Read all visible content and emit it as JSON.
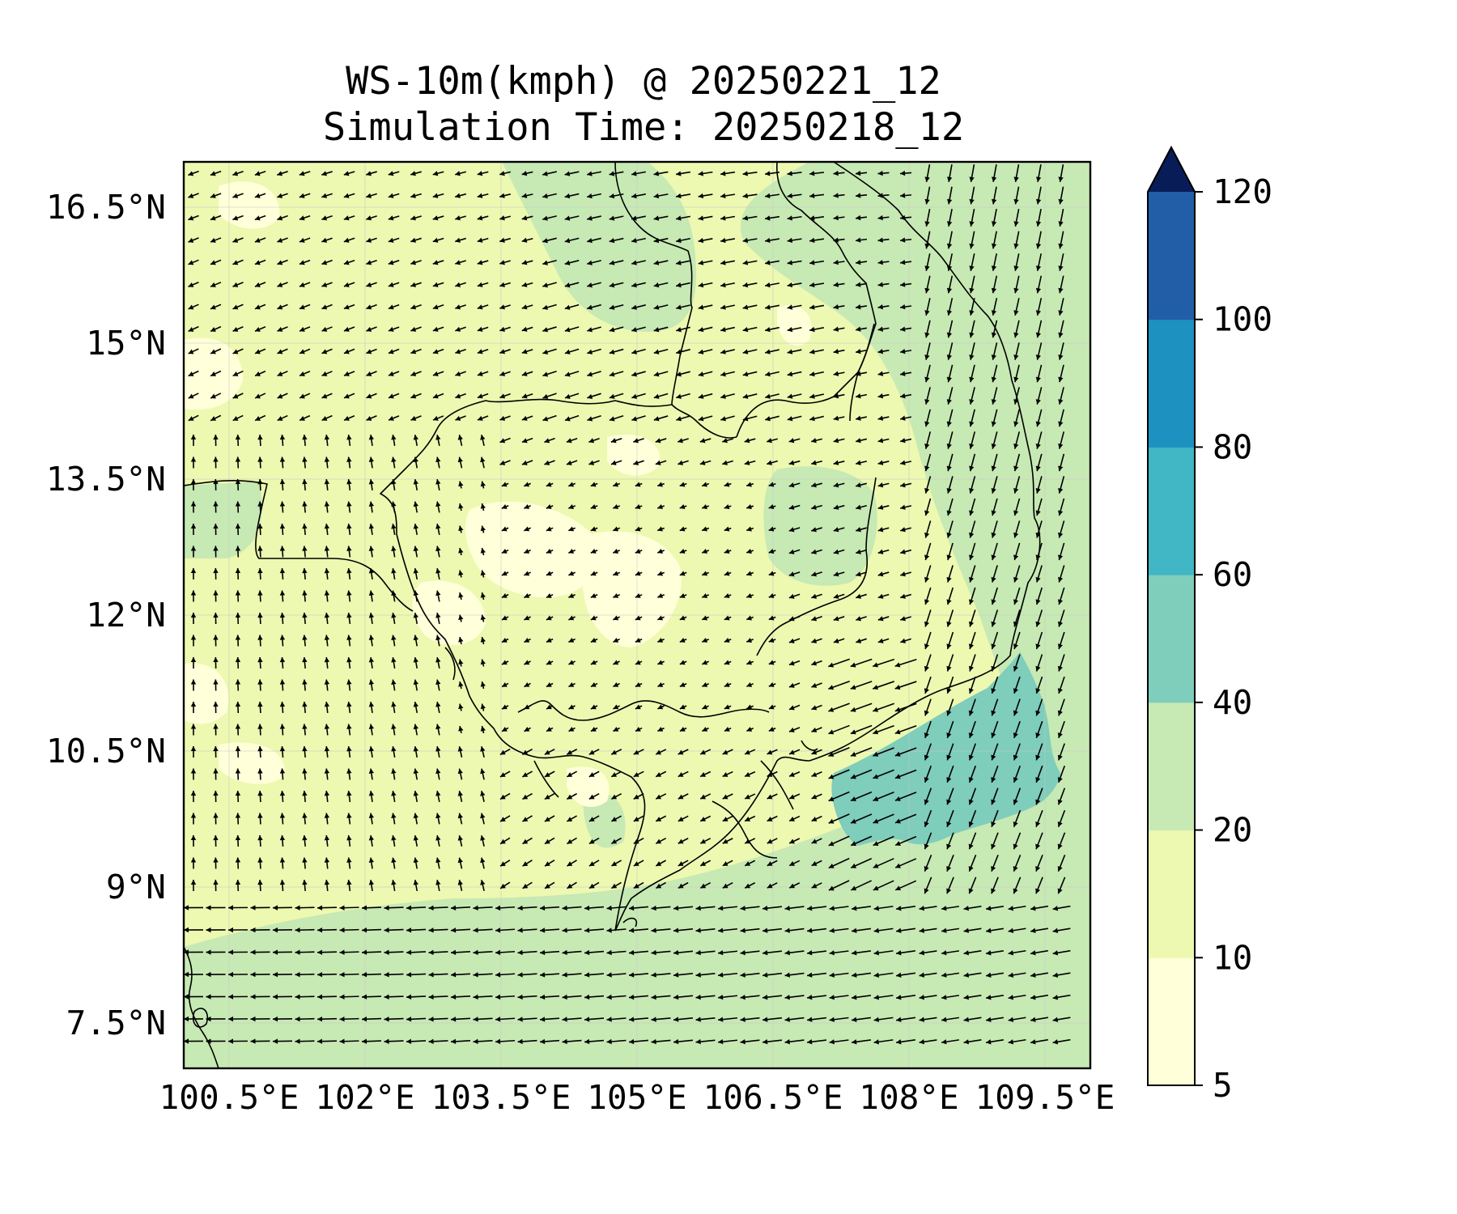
{
  "title": {
    "line1": "WS-10m(kmph) @ 20250221_12",
    "line2": "Simulation Time: 20250218_12"
  },
  "colors": {
    "frame": "#000000",
    "arrow": "#000000",
    "coastline": "#000000"
  },
  "chart_data": {
    "type": "heatmap",
    "map": {
      "projection": "PlateCarree",
      "lon_range": [
        100.0,
        110.0
      ],
      "lat_range": [
        7.0,
        17.0
      ],
      "xticks": [
        {
          "value": 100.5,
          "label": "100.5°E"
        },
        {
          "value": 102.0,
          "label": "102°E"
        },
        {
          "value": 103.5,
          "label": "103.5°E"
        },
        {
          "value": 105.0,
          "label": "105°E"
        },
        {
          "value": 106.5,
          "label": "106.5°E"
        },
        {
          "value": 108.0,
          "label": "108°E"
        },
        {
          "value": 109.5,
          "label": "109.5°E"
        }
      ],
      "yticks": [
        {
          "value": 16.5,
          "label": "16.5°N"
        },
        {
          "value": 15.0,
          "label": "15°N"
        },
        {
          "value": 13.5,
          "label": "13.5°N"
        },
        {
          "value": 12.0,
          "label": "12°N"
        },
        {
          "value": 10.5,
          "label": "10.5°N"
        },
        {
          "value": 9.0,
          "label": "9°N"
        },
        {
          "value": 7.5,
          "label": "7.5°N"
        }
      ],
      "grid": true
    },
    "field": "wind speed 10 m",
    "dominant_wind_direction": "northeast (arrows pointing southwest / west)",
    "colorbar": {
      "orientation": "vertical",
      "position": "right",
      "extend": "max",
      "levels": [
        5,
        10,
        20,
        40,
        60,
        80,
        100,
        120
      ],
      "tick_labels": [
        "5",
        "10",
        "20",
        "40",
        "60",
        "80",
        "100",
        "120"
      ],
      "colors": [
        "#ffffd9",
        "#edf8b1",
        "#c7e9b4",
        "#7fcdbb",
        "#41b6c4",
        "#1d91c0",
        "#225ea8",
        "#0c2c84"
      ],
      "extend_color": "#081d58"
    },
    "regions": [
      {
        "name": "background land / gulf",
        "category": "10-20"
      },
      {
        "name": "calm patches interior Cambodia",
        "category": "5-10"
      },
      {
        "name": "northern highlands and southern sea",
        "category": "20-40"
      },
      {
        "name": "off southeast Vietnam coast",
        "category": "40-60"
      }
    ]
  }
}
